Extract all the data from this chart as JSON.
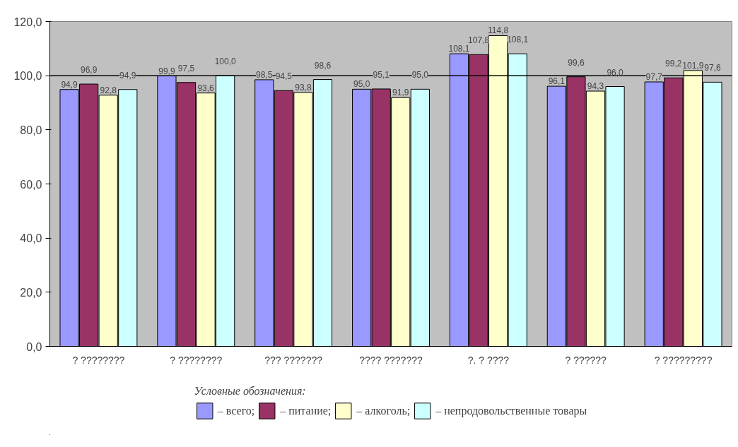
{
  "chart_data": {
    "type": "bar",
    "categories": [
      "? ????????",
      "? ????????",
      "??? ???????",
      "???? ???????",
      "?. ? ????",
      "? ??????",
      "? ?????????"
    ],
    "series": [
      {
        "name": "– всего;",
        "color": "#9999ff",
        "values": [
          94.9,
          99.9,
          98.5,
          95.0,
          108.1,
          96.1,
          97.7
        ],
        "value_labels": [
          "94,9",
          "99,9",
          "98,5",
          "95,0",
          "108,1",
          "96,1",
          "97,7"
        ]
      },
      {
        "name": "– питание;",
        "color": "#993366",
        "values": [
          96.9,
          97.5,
          94.5,
          95.1,
          107.8,
          99.6,
          99.2
        ],
        "value_labels": [
          "96,9",
          "97,5",
          "94,5",
          "95,1",
          "107,8",
          "99,6",
          "99,2"
        ]
      },
      {
        "name": "– алкоголь;",
        "color": "#ffffcc",
        "values": [
          92.8,
          93.6,
          93.8,
          91.9,
          114.8,
          94.3,
          101.9
        ],
        "value_labels": [
          "92,8",
          "93,6",
          "93,8",
          "91,9",
          "114,8",
          "94,3",
          "101,9"
        ]
      },
      {
        "name": "– непродовольственные товары",
        "color": "#ccffff",
        "values": [
          94.9,
          100.0,
          98.6,
          95.0,
          108.1,
          96.0,
          97.6
        ],
        "value_labels": [
          "94,9",
          "100,0",
          "98,6",
          "95,0",
          "108,1",
          "96,0",
          "97,6"
        ]
      }
    ],
    "ylim": [
      0,
      120
    ],
    "yticks": [
      {
        "value": 0,
        "label": "0,0"
      },
      {
        "value": 20,
        "label": "20,0"
      },
      {
        "value": 40,
        "label": "40,0"
      },
      {
        "value": 60,
        "label": "60,0"
      },
      {
        "value": 80,
        "label": "80,0"
      },
      {
        "value": 100,
        "label": "100,0"
      },
      {
        "value": 120,
        "label": "120,0"
      }
    ],
    "ref_lines": [
      {
        "axis": "y",
        "value": 100,
        "color": "#000000"
      }
    ],
    "legend": "bottom",
    "legend_title": "Условные обозначения:",
    "grid": false
  }
}
